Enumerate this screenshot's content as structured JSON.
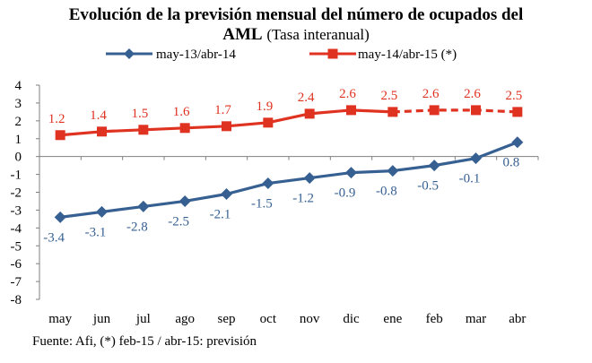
{
  "chart_data": {
    "type": "line",
    "title": "Evolución de la previsión mensual del número de ocupados del",
    "title_bold_line2": "AML",
    "title_subtitle": "(Tasa interanual)",
    "categories": [
      "may",
      "jun",
      "jul",
      "ago",
      "sep",
      "oct",
      "nov",
      "dic",
      "ene",
      "feb",
      "mar",
      "abr"
    ],
    "ylim": [
      -8,
      4
    ],
    "yticks": [
      "4",
      "3",
      "2",
      "1",
      "0",
      "-1",
      "-2",
      "-3",
      "-4",
      "-5",
      "-6",
      "-7",
      "-8"
    ],
    "grid": false,
    "legend_position": "top",
    "series": [
      {
        "name": "may-13/abr-14",
        "color": "#376092",
        "marker": "diamond",
        "values": [
          -3.4,
          -3.1,
          -2.8,
          -2.5,
          -2.1,
          -1.5,
          -1.2,
          -0.9,
          -0.8,
          -0.5,
          -0.1,
          0.8
        ],
        "labels": [
          "-3.4",
          "-3.1",
          "-2.8",
          "-2.5",
          "-2.1",
          "-1.5",
          "-1.2",
          "-0.9",
          "-0.8",
          "-0.5",
          "-0.1",
          "0.8"
        ],
        "label_color": "#376092"
      },
      {
        "name": "may-14/abr-15 (*)",
        "color": "#e03221",
        "marker": "square",
        "values": [
          1.2,
          1.4,
          1.5,
          1.6,
          1.7,
          1.9,
          2.4,
          2.6,
          2.5,
          2.6,
          2.6,
          2.5
        ],
        "labels": [
          "1.2",
          "1.4",
          "1.5",
          "1.6",
          "1.7",
          "1.9",
          "2.4",
          "2.6",
          "2.5",
          "2.6",
          "2.6",
          "2.5"
        ],
        "label_color": "#e03221",
        "dashed_from_index": 8
      }
    ]
  },
  "source": "Fuente: Afi, (*) feb-15 / abr-15: previsión"
}
